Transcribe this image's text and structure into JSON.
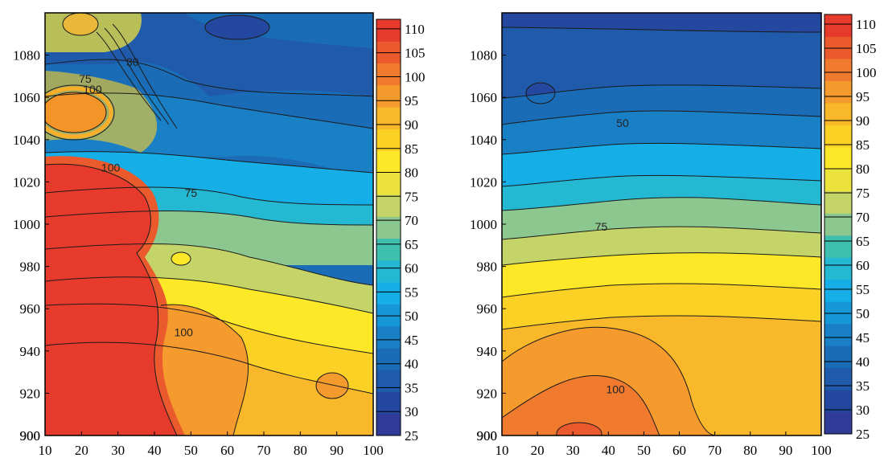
{
  "chart_data": [
    {
      "type": "heatmap",
      "subtype": "filled-contour",
      "title": "",
      "xlabel": "",
      "ylabel": "",
      "xlim": [
        10,
        100
      ],
      "ylim": [
        900,
        1100
      ],
      "x_ticks": [
        10,
        20,
        30,
        40,
        50,
        60,
        70,
        80,
        90,
        100
      ],
      "y_ticks": [
        900,
        920,
        940,
        960,
        980,
        1000,
        1020,
        1040,
        1060,
        1080
      ],
      "contour_labels": [
        {
          "text": "30",
          "x": 34,
          "y": 1075
        },
        {
          "text": "75",
          "x": 21,
          "y": 1067
        },
        {
          "text": "100",
          "x": 23,
          "y": 1062
        },
        {
          "text": "100",
          "x": 28,
          "y": 1025
        },
        {
          "text": "75",
          "x": 50,
          "y": 1013
        },
        {
          "text": "100",
          "x": 48,
          "y": 947
        }
      ],
      "zones": [
        {
          "region": "upper-right",
          "level": 40
        },
        {
          "region": "top-left hot spots",
          "level": 110
        },
        {
          "region": "left band",
          "level": 110
        },
        {
          "region": "center",
          "level": 85
        },
        {
          "region": "lower-right",
          "level": 95
        }
      ],
      "colorbar": {
        "min": 25,
        "max": 112,
        "ticks": [
          110,
          105,
          100,
          95,
          90,
          85,
          80,
          75,
          70,
          65,
          60,
          55,
          50,
          45,
          40,
          35,
          30,
          25
        ],
        "colors": [
          "#2f3b96",
          "#24479f",
          "#1f5aab",
          "#1b6cb6",
          "#1980c6",
          "#1597d8",
          "#16aee6",
          "#24b8d2",
          "#3fbfad",
          "#8cc790",
          "#c4d468",
          "#ece23c",
          "#fde827",
          "#fbd126",
          "#f8b82a",
          "#f59a2d",
          "#f07b2e",
          "#eb5a2c",
          "#e63a2c"
        ]
      },
      "grid": false,
      "legend": "colorbar-right"
    },
    {
      "type": "heatmap",
      "subtype": "filled-contour",
      "title": "",
      "xlabel": "",
      "ylabel": "",
      "xlim": [
        10,
        100
      ],
      "ylim": [
        900,
        1100
      ],
      "x_ticks": [
        10,
        20,
        30,
        40,
        50,
        60,
        70,
        80,
        90,
        100
      ],
      "y_ticks": [
        900,
        920,
        940,
        960,
        980,
        1000,
        1020,
        1040,
        1060,
        1080
      ],
      "contour_labels": [
        {
          "text": "50",
          "x": 44,
          "y": 1046
        },
        {
          "text": "75",
          "x": 38,
          "y": 997
        },
        {
          "text": "100",
          "x": 42,
          "y": 920
        }
      ],
      "zones": [
        {
          "region": "top",
          "level": 40
        },
        {
          "region": "upper-middle",
          "level": 55
        },
        {
          "region": "middle",
          "level": 72
        },
        {
          "region": "lower",
          "level": 88
        },
        {
          "region": "bottom-left",
          "level": 102
        }
      ],
      "colorbar": {
        "min": 25,
        "max": 112,
        "ticks": [
          110,
          105,
          100,
          95,
          90,
          85,
          80,
          75,
          70,
          65,
          60,
          55,
          50,
          45,
          40,
          35,
          30,
          25
        ],
        "colors": [
          "#2f3b96",
          "#24479f",
          "#1f5aab",
          "#1b6cb6",
          "#1980c6",
          "#1597d8",
          "#16aee6",
          "#24b8d2",
          "#3fbfad",
          "#8cc790",
          "#c4d468",
          "#ece23c",
          "#fde827",
          "#fbd126",
          "#f8b82a",
          "#f59a2d",
          "#f07b2e",
          "#eb5a2c",
          "#e63a2c"
        ]
      },
      "grid": false,
      "legend": "colorbar-right"
    }
  ]
}
